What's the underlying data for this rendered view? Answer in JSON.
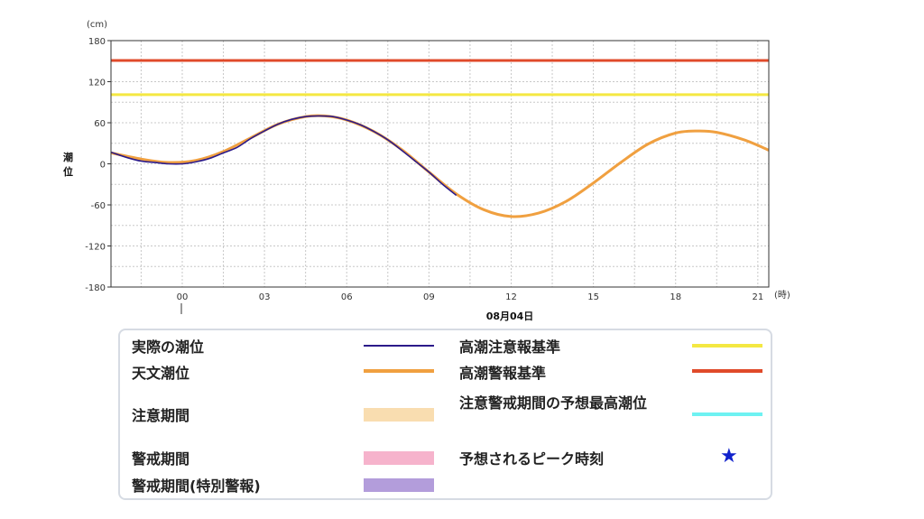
{
  "chart_data": {
    "type": "line",
    "ylabel_unit": "(cm)",
    "ylabel": "潮位",
    "xlabel_unit": "(時)",
    "date_label": "08月04日",
    "y_ticks": [
      "180",
      "120",
      "60",
      "0",
      "-60",
      "-120",
      "-180"
    ],
    "x_ticks": [
      "00",
      "03",
      "06",
      "09",
      "12",
      "15",
      "18",
      "21"
    ],
    "ylim": [
      -180,
      180
    ],
    "xlim": [
      -2.6,
      21.4
    ],
    "grid": true,
    "series": [
      {
        "name": "天文潮位",
        "color": "#f0a040",
        "x": [
          -2.6,
          -1.5,
          -0.5,
          0.5,
          1.5,
          2.5,
          3.5,
          4.5,
          5.2,
          6.0,
          7.0,
          8.0,
          9.0,
          10.0,
          11.0,
          12.0,
          13.0,
          14.0,
          15.0,
          16.0,
          17.0,
          18.0,
          18.8,
          19.5,
          20.5,
          21.4
        ],
        "y": [
          16,
          7,
          2,
          5,
          18,
          38,
          58,
          69,
          70,
          64,
          47,
          21,
          -12,
          -44,
          -67,
          -77,
          -72,
          -55,
          -28,
          2,
          29,
          45,
          48,
          46,
          35,
          20
        ]
      },
      {
        "name": "実際の潮位",
        "color": "#2b1a8a",
        "x": [
          -2.6,
          -2.0,
          -1.5,
          -1.0,
          -0.5,
          0.0,
          0.5,
          1.0,
          1.5,
          2.0,
          2.5,
          3.0,
          3.5,
          4.0,
          4.5,
          5.0,
          5.5,
          6.0,
          6.5,
          7.0,
          7.5,
          8.0,
          8.5,
          9.0,
          9.5,
          10.0
        ],
        "y": [
          17,
          9,
          4,
          2,
          0,
          0,
          3,
          8,
          16,
          24,
          37,
          48,
          58,
          65,
          69,
          70,
          69,
          64,
          57,
          47,
          35,
          20,
          4,
          -12,
          -30,
          -46
        ]
      }
    ],
    "thresholds": [
      {
        "name": "高潮注意報基準",
        "value": 101,
        "color": "#f4e842"
      },
      {
        "name": "高潮警報基準",
        "value": 151,
        "color": "#e04a2a"
      }
    ]
  },
  "legend": {
    "items": [
      {
        "label": "実際の潮位",
        "color": "#2b1a8a",
        "kind": "line"
      },
      {
        "label": "天文潮位",
        "color": "#f0a040",
        "kind": "thick"
      },
      {
        "label": "注意期間",
        "color": "#f9ddb0",
        "kind": "band"
      },
      {
        "label": "警戒期間",
        "color": "#f6b3cc",
        "kind": "band"
      },
      {
        "label": "警戒期間(特別警報)",
        "color": "#b39ddb",
        "kind": "band"
      },
      {
        "label": "高潮注意報基準",
        "color": "#f4e842",
        "kind": "thick"
      },
      {
        "label": "高潮警報基準",
        "color": "#e04a2a",
        "kind": "thick"
      },
      {
        "label": "注意警戒期間の予想最高潮位",
        "color": "#6ef2f2",
        "kind": "thick"
      },
      {
        "label": "予想されるピーク時刻",
        "color": "#1122cc",
        "kind": "star",
        "symbol": "★"
      }
    ]
  }
}
